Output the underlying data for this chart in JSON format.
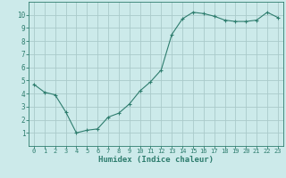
{
  "x": [
    0,
    1,
    2,
    3,
    4,
    5,
    6,
    7,
    8,
    9,
    10,
    11,
    12,
    13,
    14,
    15,
    16,
    17,
    18,
    19,
    20,
    21,
    22,
    23
  ],
  "y": [
    4.7,
    4.1,
    3.9,
    2.6,
    1.0,
    1.2,
    1.3,
    2.2,
    2.5,
    3.2,
    4.2,
    4.9,
    5.8,
    8.5,
    9.7,
    10.2,
    10.1,
    9.9,
    9.6,
    9.5,
    9.5,
    9.6,
    10.2,
    9.8
  ],
  "line_color": "#2e7d6e",
  "marker": "+",
  "marker_size": 3,
  "marker_linewidth": 0.8,
  "line_width": 0.8,
  "bg_color": "#cceaea",
  "grid_color": "#aacaca",
  "xlabel": "Humidex (Indice chaleur)",
  "xlim": [
    -0.5,
    23.5
  ],
  "ylim": [
    0.0,
    11.0
  ],
  "yticks": [
    1,
    2,
    3,
    4,
    5,
    6,
    7,
    8,
    9,
    10
  ],
  "xticks": [
    0,
    1,
    2,
    3,
    4,
    5,
    6,
    7,
    8,
    9,
    10,
    11,
    12,
    13,
    14,
    15,
    16,
    17,
    18,
    19,
    20,
    21,
    22,
    23
  ],
  "axis_color": "#2e7d6e",
  "tick_color": "#2e7d6e",
  "xlabel_fontsize": 6.5,
  "tick_fontsize_x": 5.0,
  "tick_fontsize_y": 5.5
}
